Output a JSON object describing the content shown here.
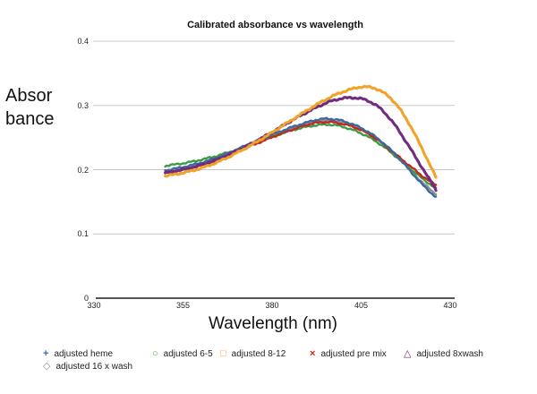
{
  "title": "Calibrated absorbance vs wavelength",
  "y_axis": {
    "label_lines": [
      "Absor",
      "bance"
    ]
  },
  "x_axis": {
    "label": "Wavelength (nm)"
  },
  "colors": {
    "grid": "#c9c9c9",
    "axis": "#1a1a1a",
    "text": "#111111"
  },
  "chart_data": {
    "type": "line",
    "title": "Calibrated absorbance vs wavelength",
    "xlabel": "Wavelength (nm)",
    "ylabel": "Absorbance",
    "xlim": [
      330,
      430
    ],
    "ylim": [
      0,
      0.4
    ],
    "x_ticks": [
      330,
      355,
      380,
      405,
      430
    ],
    "y_ticks": [
      0,
      0.1,
      0.2,
      0.3,
      0.4
    ],
    "grid": true,
    "legend_position": "bottom",
    "x": [
      350,
      354,
      358,
      362,
      366,
      370,
      374,
      378,
      382,
      386,
      390,
      394,
      398,
      402,
      406,
      410,
      414,
      418,
      422,
      426
    ],
    "series": [
      {
        "name": "adjusted heme",
        "marker": "plus",
        "color": "#3c6aa0",
        "values": [
          0.199,
          0.203,
          0.208,
          0.214,
          0.222,
          0.231,
          0.241,
          0.25,
          0.259,
          0.267,
          0.274,
          0.279,
          0.278,
          0.272,
          0.262,
          0.247,
          0.227,
          0.203,
          0.178,
          0.157
        ]
      },
      {
        "name": "adjusted 6-5",
        "marker": "circle",
        "color": "#3f9b41",
        "values": [
          0.206,
          0.209,
          0.213,
          0.218,
          0.224,
          0.231,
          0.239,
          0.247,
          0.255,
          0.262,
          0.267,
          0.27,
          0.269,
          0.263,
          0.254,
          0.241,
          0.224,
          0.205,
          0.187,
          0.171
        ]
      },
      {
        "name": "adjusted 8-12",
        "marker": "square",
        "color": "#f0a328",
        "values": [
          0.19,
          0.194,
          0.199,
          0.206,
          0.215,
          0.226,
          0.238,
          0.251,
          0.265,
          0.279,
          0.293,
          0.306,
          0.317,
          0.325,
          0.329,
          0.324,
          0.307,
          0.276,
          0.234,
          0.188
        ]
      },
      {
        "name": "adjusted pre mix",
        "marker": "x",
        "color": "#c3271d",
        "values": [
          0.195,
          0.199,
          0.204,
          0.21,
          0.218,
          0.227,
          0.237,
          0.246,
          0.255,
          0.263,
          0.27,
          0.274,
          0.273,
          0.268,
          0.259,
          0.245,
          0.227,
          0.209,
          0.191,
          0.176
        ]
      },
      {
        "name": "adjusted 8xwash",
        "marker": "triangle",
        "color": "#702d80",
        "values": [
          0.195,
          0.199,
          0.204,
          0.211,
          0.219,
          0.229,
          0.24,
          0.252,
          0.265,
          0.278,
          0.29,
          0.301,
          0.309,
          0.312,
          0.309,
          0.297,
          0.273,
          0.24,
          0.204,
          0.169
        ]
      },
      {
        "name": "adjusted 16 x wash",
        "marker": "diamond",
        "color": "#8e8e8e",
        "values": [
          0.197,
          0.201,
          0.206,
          0.212,
          0.22,
          0.229,
          0.239,
          0.248,
          0.257,
          0.265,
          0.272,
          0.276,
          0.275,
          0.27,
          0.26,
          0.246,
          0.227,
          0.204,
          0.181,
          0.162
        ]
      }
    ]
  }
}
